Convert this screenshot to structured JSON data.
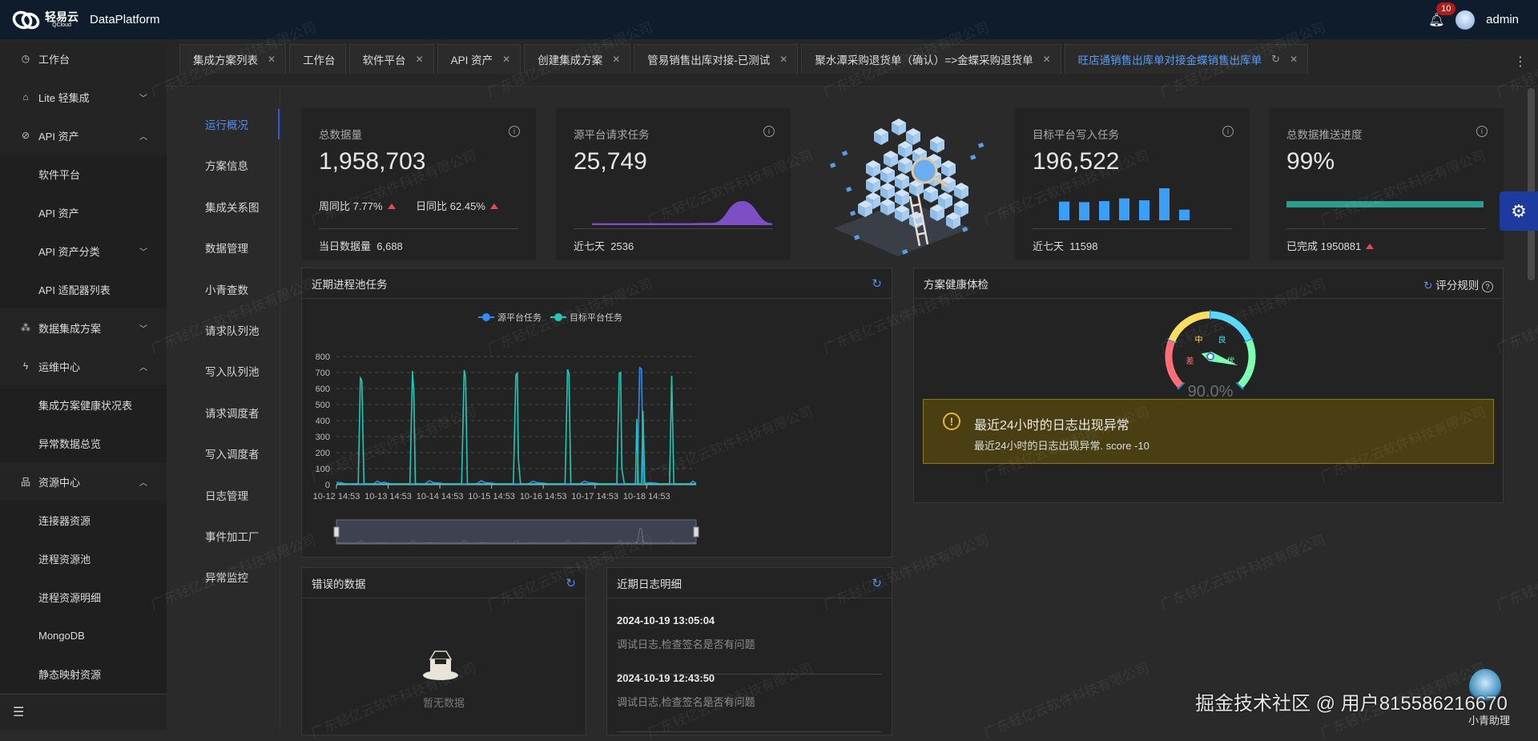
{
  "header": {
    "logo_cn": "轻易云",
    "logo_en": "QCloud",
    "app_name": "DataPlatform",
    "notification_count": "10",
    "username": "admin"
  },
  "sidebar": {
    "items": [
      {
        "label": "工作台",
        "icon": "clock-icon",
        "level": 1
      },
      {
        "label": "Lite 轻集成",
        "icon": "lite-icon",
        "level": 1,
        "chevron": "down"
      },
      {
        "label": "API 资产",
        "icon": "compass-icon",
        "level": 1,
        "chevron": "up"
      },
      {
        "label": "软件平台",
        "level": 2
      },
      {
        "label": "API 资产",
        "level": 2
      },
      {
        "label": "API 资产分类",
        "level": 2,
        "chevron": "down"
      },
      {
        "label": "API 适配器列表",
        "level": 2
      },
      {
        "label": "数据集成方案",
        "icon": "network-icon",
        "level": 1,
        "chevron": "down"
      },
      {
        "label": "运维中心",
        "icon": "lightning-icon",
        "level": 1,
        "chevron": "up"
      },
      {
        "label": "集成方案健康状况表",
        "level": 2
      },
      {
        "label": "异常数据总览",
        "level": 2
      },
      {
        "label": "资源中心",
        "icon": "hierarchy-icon",
        "level": 1,
        "chevron": "up"
      },
      {
        "label": "连接器资源",
        "level": 2
      },
      {
        "label": "进程资源池",
        "level": 2
      },
      {
        "label": "进程资源明细",
        "level": 2
      },
      {
        "label": "MongoDB",
        "level": 2
      },
      {
        "label": "静态映射资源",
        "level": 2
      }
    ]
  },
  "tabs": [
    {
      "label": "集成方案列表",
      "closable": true
    },
    {
      "label": "工作台",
      "closable": false
    },
    {
      "label": "软件平台",
      "closable": true
    },
    {
      "label": "API 资产",
      "closable": true
    },
    {
      "label": "创建集成方案",
      "closable": true
    },
    {
      "label": "管易销售出库对接-已测试",
      "closable": true
    },
    {
      "label": "聚水潭采购退货单（确认）=>金蝶采购退货单",
      "closable": true
    },
    {
      "label": "旺店通销售出库单对接金蝶销售出库单",
      "closable": true,
      "active": true,
      "refresh": true
    }
  ],
  "subnav": {
    "active": 0,
    "items": [
      "运行概况",
      "方案信息",
      "集成关系图",
      "数据管理",
      "小青查数",
      "请求队列池",
      "写入队列池",
      "请求调度者",
      "写入调度者",
      "日志管理",
      "事件加工厂",
      "异常监控"
    ]
  },
  "stats": {
    "total": {
      "title": "总数据量",
      "value": "1,958,703",
      "week_label": "周同比",
      "week_value": "7.77%",
      "day_label": "日同比",
      "day_value": "62.45%",
      "footer_label": "当日数据量",
      "footer_value": "6,688"
    },
    "source": {
      "title": "源平台请求任务",
      "value": "25,749",
      "footer_label": "近七天",
      "footer_value": "2536",
      "sparkline": [
        20,
        20,
        20,
        20,
        40,
        1500,
        20
      ],
      "color": "#7e4fc4"
    },
    "target": {
      "title": "目标平台写入任务",
      "value": "196,522",
      "footer_label": "近七天",
      "footer_value": "11598",
      "bars": [
        1540,
        1497,
        1585,
        1805,
        1651,
        2642,
        880
      ],
      "color": "#3a9ff5"
    },
    "progress": {
      "title": "总数据推送进度",
      "value": "99%",
      "percent": 99,
      "footer_label": "已完成",
      "footer_value": "1950881",
      "color": "#2a9d8f"
    }
  },
  "trend_panel": {
    "title": "近期进程池任务"
  },
  "chart_data": {
    "type": "line",
    "title": "",
    "ylim": [
      0,
      800
    ],
    "yticks": [
      0,
      100,
      200,
      300,
      400,
      500,
      600,
      700,
      800
    ],
    "xlim": [
      "10-12 14:53",
      "10-19 13:50"
    ],
    "xticks": [
      "10-12 14:53",
      "10-13 14:53",
      "10-14 14:53",
      "10-15 14:53",
      "10-16 14:53",
      "10-17 14:53",
      "10-18 14:53"
    ],
    "grid": true,
    "legend_position": "top",
    "series": [
      {
        "name": "源平台任务",
        "color": "#2f8cf0",
        "points": [
          [
            "10-12 14:53",
            15
          ],
          [
            "10-12 17:00",
            12
          ],
          [
            "10-12 19:00",
            5
          ],
          [
            "10-13 08:00",
            5
          ],
          [
            "10-13 10:00",
            22
          ],
          [
            "10-13 11:30",
            10
          ],
          [
            "10-13 13:00",
            15
          ],
          [
            "10-13 16:00",
            5
          ],
          [
            "10-14 08:00",
            5
          ],
          [
            "10-14 10:00",
            25
          ],
          [
            "10-14 12:00",
            12
          ],
          [
            "10-14 15:00",
            10
          ],
          [
            "10-14 17:00",
            5
          ],
          [
            "10-15 08:00",
            5
          ],
          [
            "10-15 10:00",
            25
          ],
          [
            "10-15 12:00",
            12
          ],
          [
            "10-15 15:00",
            10
          ],
          [
            "10-15 17:00",
            5
          ],
          [
            "10-16 08:00",
            5
          ],
          [
            "10-16 10:00",
            22
          ],
          [
            "10-16 12:00",
            12
          ],
          [
            "10-16 15:00",
            10
          ],
          [
            "10-16 17:00",
            5
          ],
          [
            "10-17 08:00",
            5
          ],
          [
            "10-17 10:00",
            22
          ],
          [
            "10-17 12:00",
            12
          ],
          [
            "10-17 15:00",
            10
          ],
          [
            "10-17 17:00",
            5
          ],
          [
            "10-18 10:30",
            5
          ],
          [
            "10-18 11:40",
            730
          ],
          [
            "10-18 12:30",
            720
          ],
          [
            "10-18 13:20",
            5
          ],
          [
            "10-18 16:00",
            12
          ],
          [
            "10-18 19:00",
            10
          ],
          [
            "10-18 21:00",
            5
          ],
          [
            "10-19 11:00",
            5
          ],
          [
            "10-19 12:20",
            22
          ],
          [
            "10-19 13:50",
            8
          ]
        ]
      },
      {
        "name": "目标平台任务",
        "color": "#1fc8b6",
        "points": [
          [
            "10-12 14:53",
            5
          ],
          [
            "10-13 01:00",
            5
          ],
          [
            "10-13 02:00",
            665
          ],
          [
            "10-13 02:40",
            650
          ],
          [
            "10-13 03:40",
            5
          ],
          [
            "10-14 01:00",
            5
          ],
          [
            "10-14 02:10",
            710
          ],
          [
            "10-14 02:50",
            570
          ],
          [
            "10-14 03:30",
            5
          ],
          [
            "10-15 01:00",
            5
          ],
          [
            "10-15 02:10",
            715
          ],
          [
            "10-15 02:50",
            670
          ],
          [
            "10-15 03:40",
            5
          ],
          [
            "10-16 01:00",
            5
          ],
          [
            "10-16 02:10",
            685
          ],
          [
            "10-16 02:50",
            695
          ],
          [
            "10-16 03:20",
            160
          ],
          [
            "10-16 04:20",
            5
          ],
          [
            "10-17 01:00",
            5
          ],
          [
            "10-17 02:10",
            720
          ],
          [
            "10-17 02:50",
            690
          ],
          [
            "10-17 03:40",
            5
          ],
          [
            "10-18 01:00",
            5
          ],
          [
            "10-18 02:10",
            695
          ],
          [
            "10-18 02:50",
            700
          ],
          [
            "10-18 03:20",
            100
          ],
          [
            "10-18 04:30",
            5
          ],
          [
            "10-18 09:40",
            5
          ],
          [
            "10-18 10:20",
            410
          ],
          [
            "10-18 11:00",
            5
          ],
          [
            "10-18 12:30",
            5
          ],
          [
            "10-18 13:10",
            460
          ],
          [
            "10-18 14:00",
            5
          ],
          [
            "10-19 01:30",
            5
          ],
          [
            "10-19 02:30",
            680
          ],
          [
            "10-19 03:30",
            5
          ],
          [
            "10-19 13:50",
            5
          ]
        ]
      }
    ],
    "data_zoom": {
      "start_percent": 0,
      "end_percent": 100
    }
  },
  "health": {
    "title": "方案健康体检",
    "rules_label": "评分规则",
    "gauge": {
      "value": 90.0,
      "display": "90.0%",
      "bands": [
        {
          "label": "差",
          "color": "#ff6e76"
        },
        {
          "label": "中",
          "color": "#fddd60"
        },
        {
          "label": "良",
          "color": "#58d9f9"
        },
        {
          "label": "优",
          "color": "#7cffb2"
        }
      ],
      "needle_color": "#7cffb2"
    },
    "alert": {
      "title": "最近24小时的日志出现异常",
      "detail": "最近24小时的日志出现异常. score -10"
    }
  },
  "errors": {
    "title": "错误的数据",
    "empty_text": "暂无数据"
  },
  "logs": {
    "title": "近期日志明细",
    "items": [
      {
        "time": "2024-10-19 13:05:04",
        "message": "调试日志,检查签名是否有问题"
      },
      {
        "time": "2024-10-19 12:43:50",
        "message": "调试日志,检查签名是否有问题"
      }
    ]
  },
  "watermark": "广东轻亿云软件科技有限公司",
  "credit": "掘金技术社区 @ 用户815586216670",
  "assistant": {
    "label": "小青助理"
  }
}
